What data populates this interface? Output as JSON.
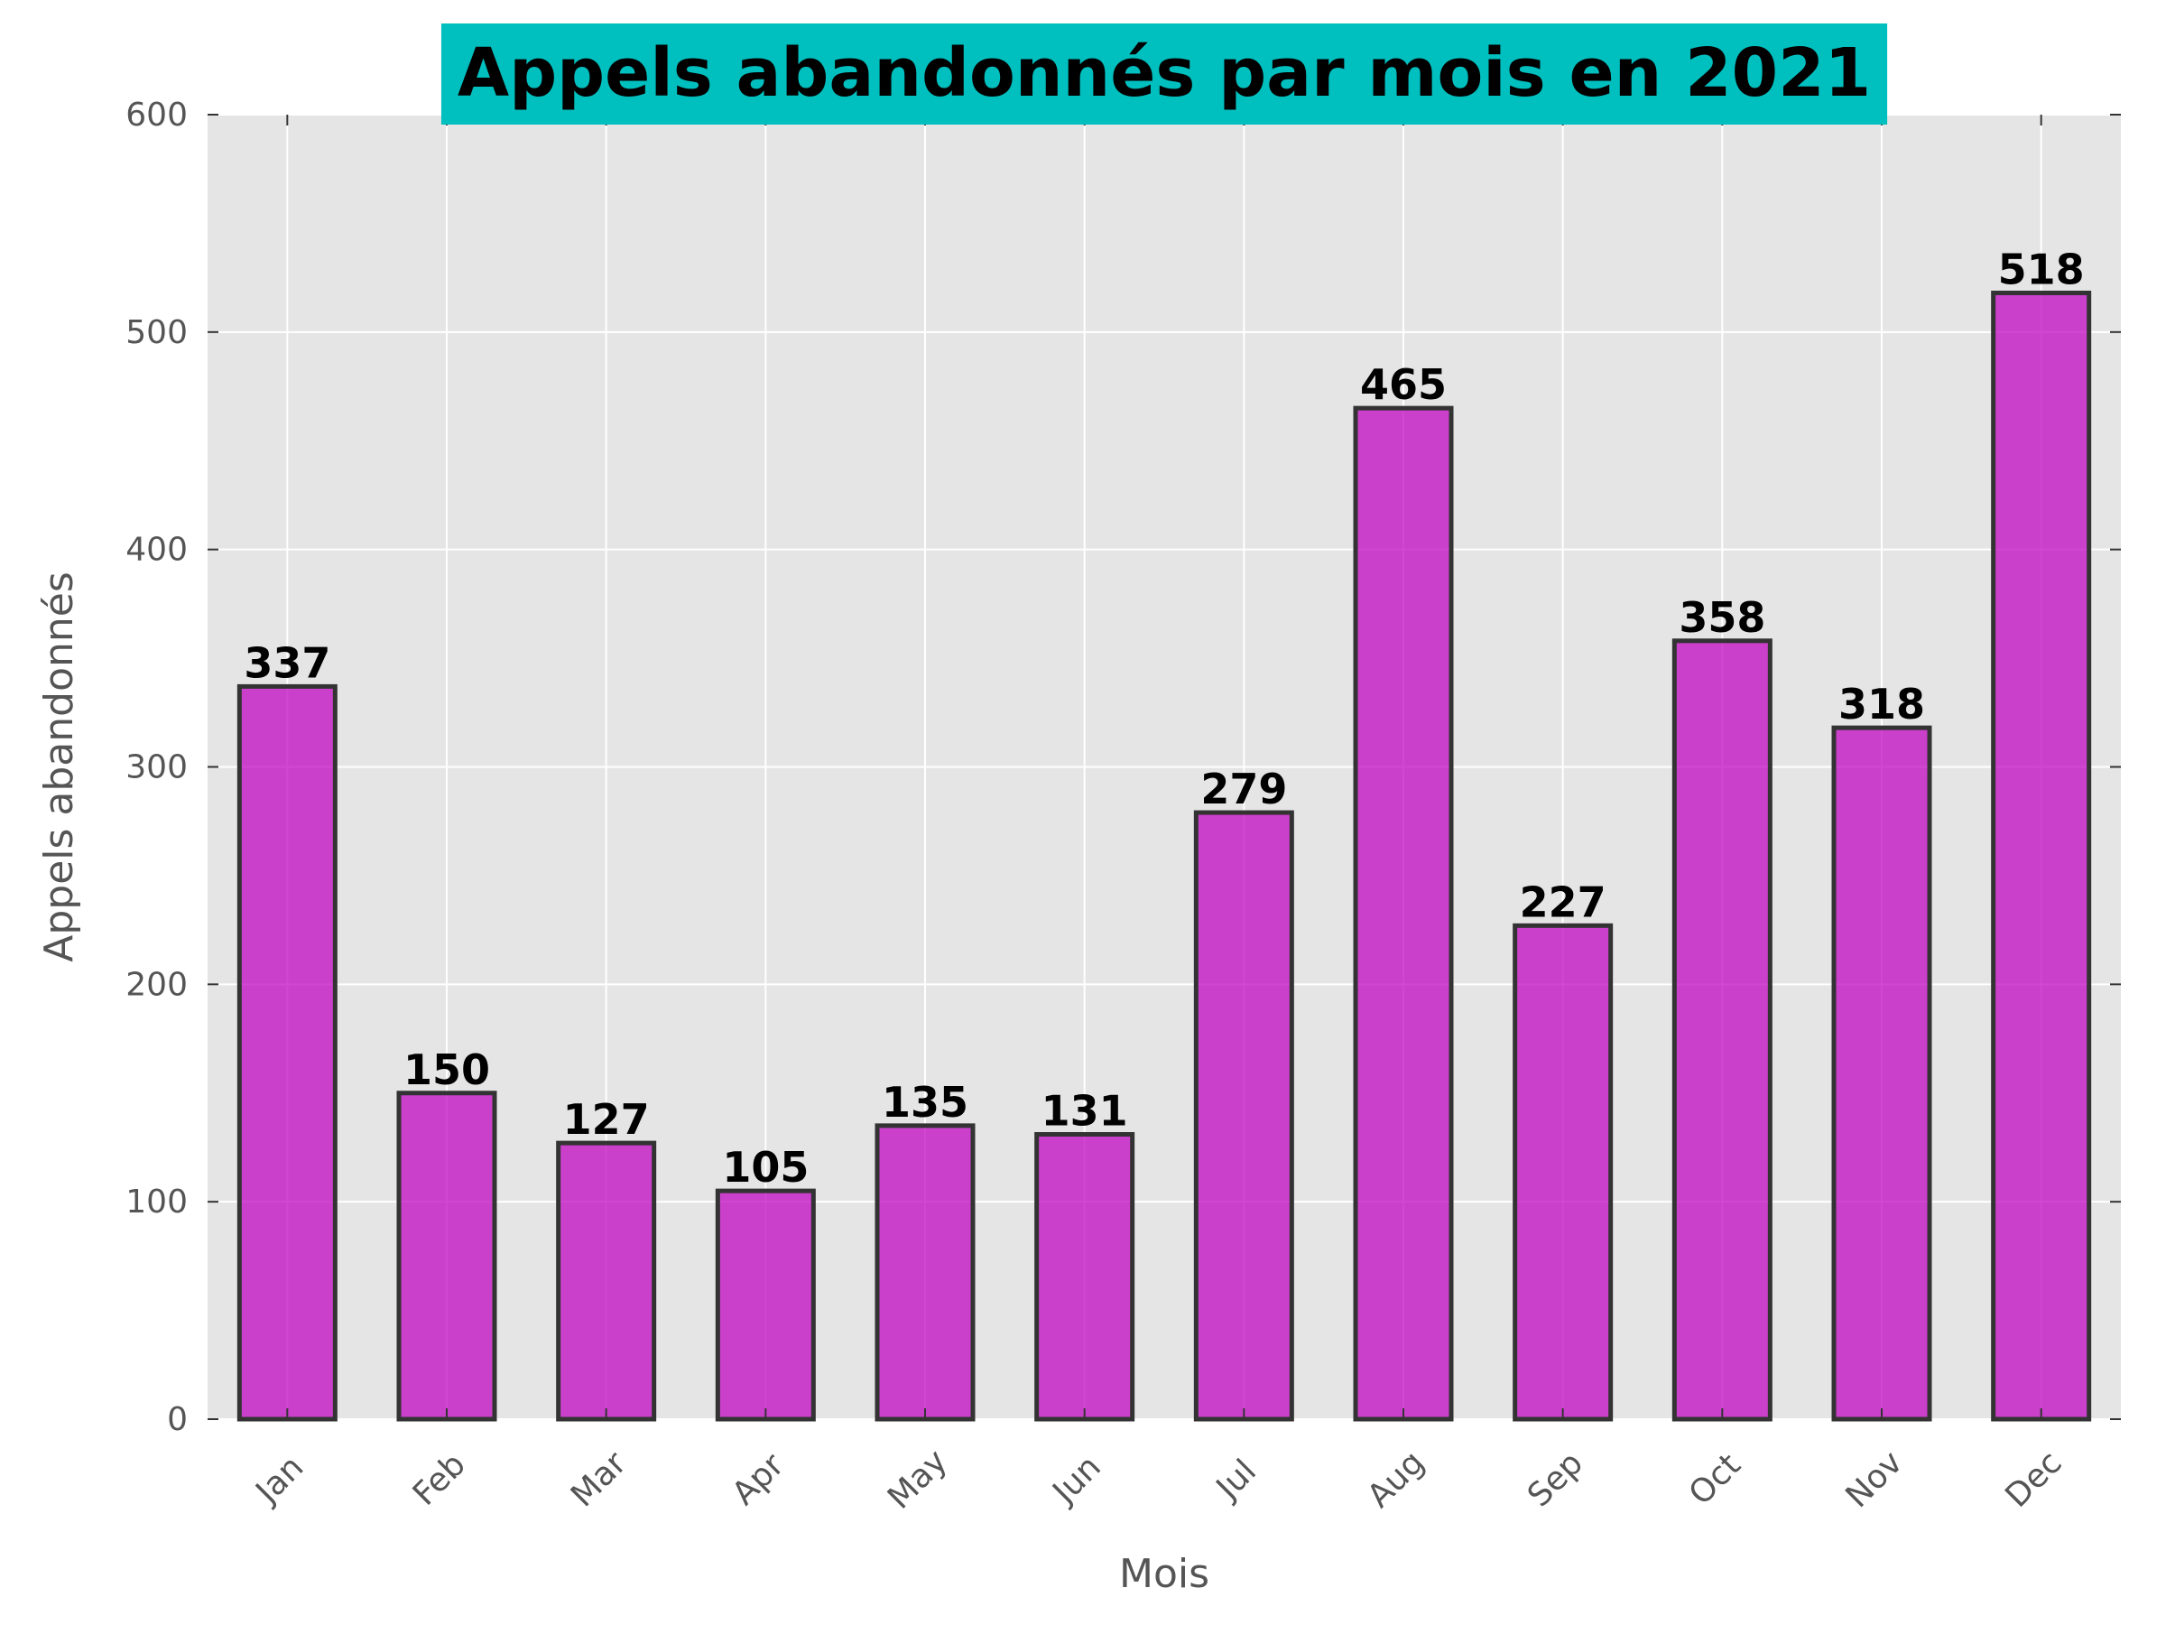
{
  "colors": {
    "bar_fill": "#bf00bf",
    "bar_edge": "#333333",
    "plot_bg": "#e5e5e5",
    "grid": "#ffffff",
    "title_bg": "#00bfbf"
  },
  "chart_data": {
    "type": "bar",
    "title": "Appels abandonnés par mois en 2021",
    "xlabel": "Mois",
    "ylabel": "Appels abandonnés",
    "categories": [
      "Jan",
      "Feb",
      "Mar",
      "Apr",
      "May",
      "Jun",
      "Jul",
      "Aug",
      "Sep",
      "Oct",
      "Nov",
      "Dec"
    ],
    "values": [
      337,
      150,
      127,
      105,
      135,
      131,
      279,
      465,
      227,
      358,
      318,
      518
    ],
    "ylim": [
      0,
      600
    ],
    "yticks": [
      0,
      100,
      200,
      300,
      400,
      500,
      600
    ],
    "grid": true,
    "data_labels": true
  }
}
